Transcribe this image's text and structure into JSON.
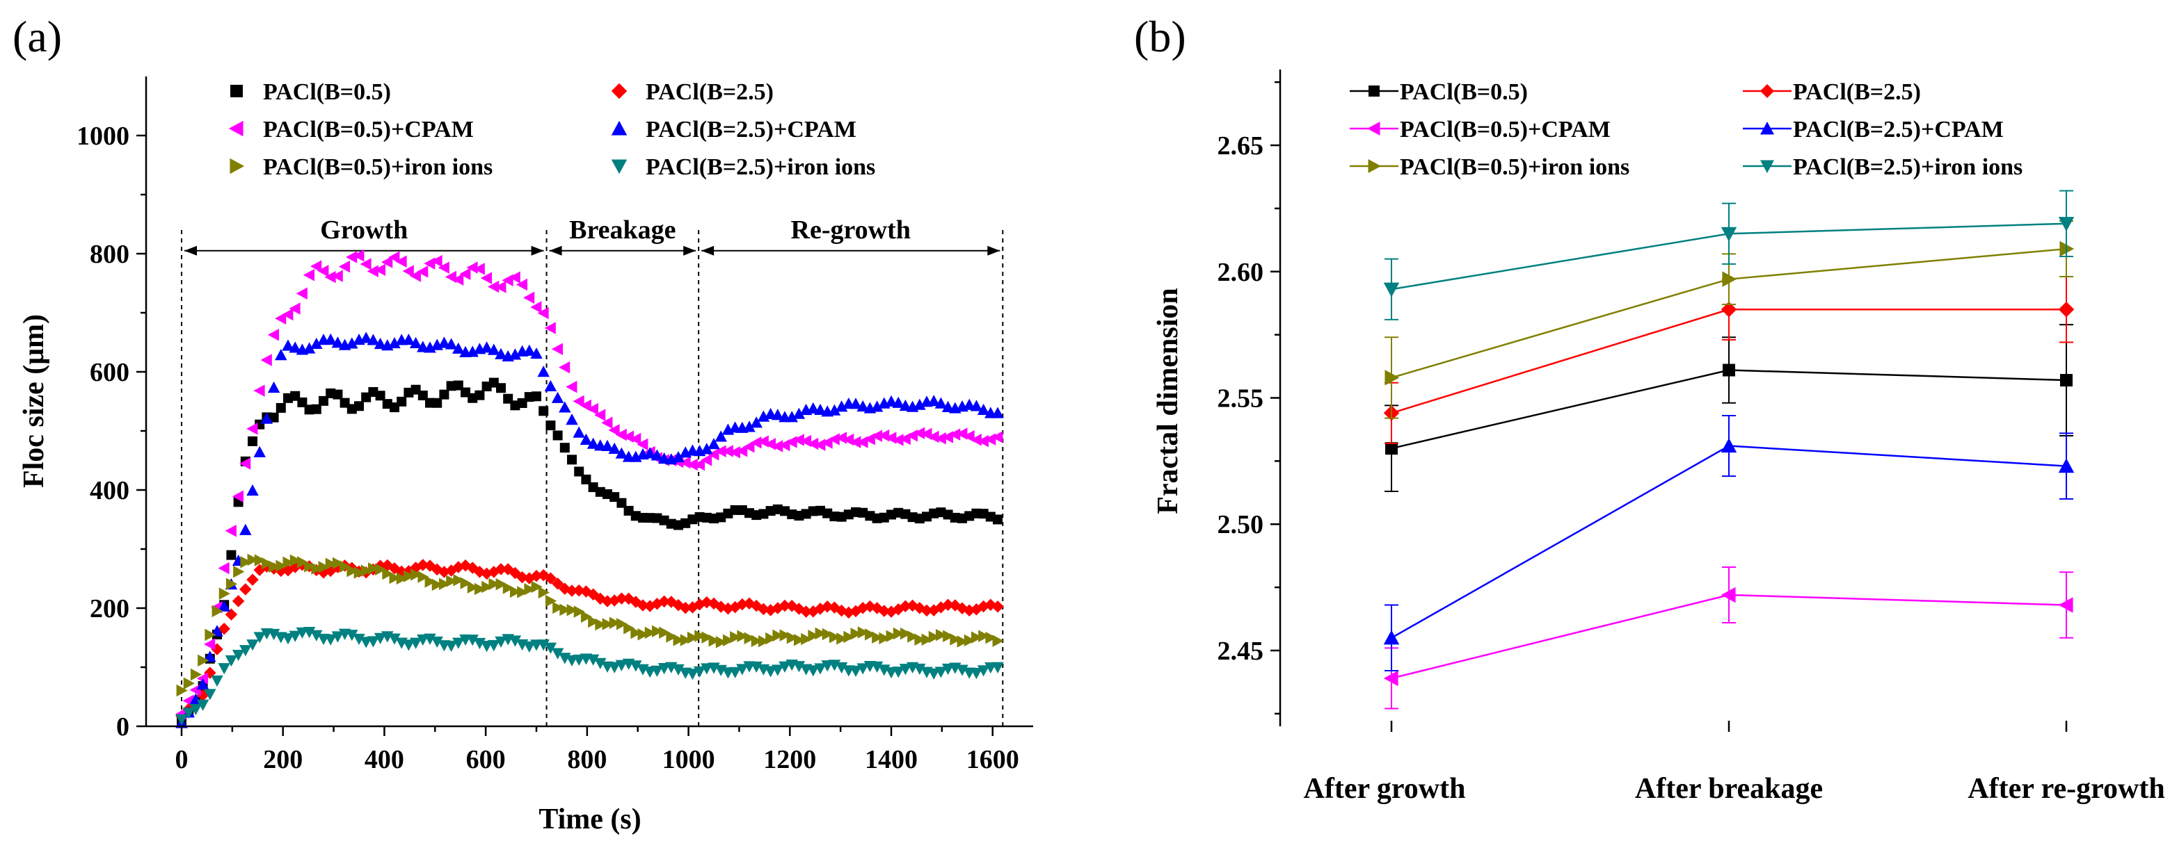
{
  "panels": {
    "a": "(a)",
    "b": "(b)"
  },
  "chart_data": [
    {
      "type": "scatter",
      "xlabel": "Time (s)",
      "ylabel": "Floc size (μm)",
      "xlim": [
        -70,
        1680
      ],
      "ylim": [
        0,
        1100
      ],
      "xticks": [
        0,
        200,
        400,
        600,
        800,
        1000,
        1200,
        1400,
        1600
      ],
      "yticks": [
        0,
        200,
        400,
        600,
        800,
        1000
      ],
      "phases": [
        {
          "label": "Growth",
          "start": 0,
          "end": 720
        },
        {
          "label": "Breakage",
          "start": 720,
          "end": 1020
        },
        {
          "label": "Re-growth",
          "start": 1020,
          "end": 1620
        }
      ],
      "phase_boundaries": [
        0,
        720,
        1020,
        1620
      ],
      "legend_placement": "top",
      "series": [
        {
          "name": "PACl(B=0.5)",
          "color": "#000000",
          "marker": "square",
          "keypoints": [
            [
              0,
              10
            ],
            [
              40,
              60
            ],
            [
              80,
              180
            ],
            [
              120,
              430
            ],
            [
              160,
              520
            ],
            [
              200,
              540
            ],
            [
              300,
              555
            ],
            [
              400,
              560
            ],
            [
              500,
              560
            ],
            [
              600,
              565
            ],
            [
              700,
              540
            ],
            [
              740,
              500
            ],
            [
              780,
              430
            ],
            [
              830,
              400
            ],
            [
              880,
              370
            ],
            [
              930,
              350
            ],
            [
              1000,
              345
            ],
            [
              1050,
              355
            ],
            [
              1100,
              360
            ],
            [
              1300,
              360
            ],
            [
              1500,
              358
            ],
            [
              1620,
              352
            ]
          ]
        },
        {
          "name": "PACl(B=2.5)",
          "color": "#ff0000",
          "marker": "diamond",
          "keypoints": [
            [
              0,
              10
            ],
            [
              40,
              50
            ],
            [
              80,
              150
            ],
            [
              120,
              230
            ],
            [
              160,
              265
            ],
            [
              200,
              270
            ],
            [
              400,
              268
            ],
            [
              600,
              262
            ],
            [
              700,
              255
            ],
            [
              740,
              245
            ],
            [
              800,
              225
            ],
            [
              900,
              210
            ],
            [
              1000,
              203
            ],
            [
              1200,
              200
            ],
            [
              1400,
              200
            ],
            [
              1620,
              198
            ]
          ]
        },
        {
          "name": "PACl(B=0.5)+CPAM",
          "color": "#ff00ff",
          "marker": "triangle-left",
          "keypoints": [
            [
              0,
              20
            ],
            [
              40,
              70
            ],
            [
              80,
              250
            ],
            [
              120,
              420
            ],
            [
              160,
              600
            ],
            [
              200,
              700
            ],
            [
              260,
              770
            ],
            [
              350,
              785
            ],
            [
              450,
              770
            ],
            [
              550,
              765
            ],
            [
              650,
              755
            ],
            [
              710,
              725
            ],
            [
              740,
              640
            ],
            [
              780,
              560
            ],
            [
              830,
              520
            ],
            [
              880,
              490
            ],
            [
              930,
              460
            ],
            [
              980,
              440
            ],
            [
              1020,
              445
            ],
            [
              1080,
              465
            ],
            [
              1150,
              480
            ],
            [
              1300,
              485
            ],
            [
              1500,
              490
            ],
            [
              1620,
              485
            ]
          ]
        },
        {
          "name": "PACl(B=2.5)+CPAM",
          "color": "#0000ff",
          "marker": "triangle-up",
          "keypoints": [
            [
              0,
              10
            ],
            [
              40,
              60
            ],
            [
              80,
              200
            ],
            [
              120,
              300
            ],
            [
              160,
              500
            ],
            [
              200,
              640
            ],
            [
              300,
              650
            ],
            [
              400,
              648
            ],
            [
              500,
              645
            ],
            [
              600,
              638
            ],
            [
              700,
              632
            ],
            [
              740,
              560
            ],
            [
              780,
              500
            ],
            [
              830,
              470
            ],
            [
              900,
              455
            ],
            [
              980,
              455
            ],
            [
              1020,
              465
            ],
            [
              1080,
              500
            ],
            [
              1150,
              525
            ],
            [
              1300,
              540
            ],
            [
              1500,
              545
            ],
            [
              1620,
              535
            ]
          ]
        },
        {
          "name": "PACl(B=0.5)+iron ions",
          "color": "#808000",
          "marker": "triangle-right",
          "keypoints": [
            [
              0,
              60
            ],
            [
              40,
              110
            ],
            [
              80,
              220
            ],
            [
              120,
              280
            ],
            [
              200,
              275
            ],
            [
              300,
              268
            ],
            [
              400,
              258
            ],
            [
              500,
              248
            ],
            [
              600,
              240
            ],
            [
              700,
              230
            ],
            [
              740,
              205
            ],
            [
              800,
              180
            ],
            [
              900,
              160
            ],
            [
              1000,
              150
            ],
            [
              1200,
              150
            ],
            [
              1400,
              152
            ],
            [
              1620,
              150
            ]
          ]
        },
        {
          "name": "PACl(B=2.5)+iron ions",
          "color": "#008080",
          "marker": "triangle-down",
          "keypoints": [
            [
              0,
              10
            ],
            [
              40,
              40
            ],
            [
              80,
              90
            ],
            [
              120,
              130
            ],
            [
              160,
              150
            ],
            [
              200,
              152
            ],
            [
              400,
              148
            ],
            [
              600,
              142
            ],
            [
              700,
              138
            ],
            [
              740,
              120
            ],
            [
              800,
              108
            ],
            [
              900,
              100
            ],
            [
              1000,
              96
            ],
            [
              1200,
              97
            ],
            [
              1400,
              97
            ],
            [
              1620,
              96
            ]
          ]
        }
      ]
    },
    {
      "type": "line",
      "xlabel": "",
      "ylabel": "Fractal dimension",
      "categories": [
        "After growth",
        "After breakage",
        "After re-growth"
      ],
      "ylim": [
        2.42,
        2.68
      ],
      "yticks": [
        "2.45",
        "2.50",
        "2.55",
        "2.60",
        "2.65"
      ],
      "legend_placement": "top",
      "series": [
        {
          "name": "PACl(B=0.5)",
          "color": "#000000",
          "marker": "square",
          "values": [
            2.53,
            2.561,
            2.557
          ],
          "errors": [
            0.017,
            0.013,
            0.022
          ]
        },
        {
          "name": "PACl(B=2.5)",
          "color": "#ff0000",
          "marker": "diamond",
          "values": [
            2.544,
            2.585,
            2.585
          ],
          "errors": [
            0.012,
            0.012,
            0.013
          ]
        },
        {
          "name": "PACl(B=0.5)+CPAM",
          "color": "#ff00ff",
          "marker": "triangle-left",
          "values": [
            2.439,
            2.472,
            2.468
          ],
          "errors": [
            0.012,
            0.011,
            0.013
          ]
        },
        {
          "name": "PACl(B=2.5)+CPAM",
          "color": "#0000ff",
          "marker": "triangle-up",
          "values": [
            2.455,
            2.531,
            2.523
          ],
          "errors": [
            0.013,
            0.012,
            0.013
          ]
        },
        {
          "name": "PACl(B=0.5)+iron ions",
          "color": "#808000",
          "marker": "triangle-right",
          "values": [
            2.558,
            2.597,
            2.609
          ],
          "errors": [
            0.016,
            0.01,
            0.011
          ]
        },
        {
          "name": "PACl(B=2.5)+iron ions",
          "color": "#008080",
          "marker": "triangle-down",
          "values": [
            2.593,
            2.615,
            2.619
          ],
          "errors": [
            0.012,
            0.012,
            0.013
          ]
        }
      ]
    }
  ]
}
